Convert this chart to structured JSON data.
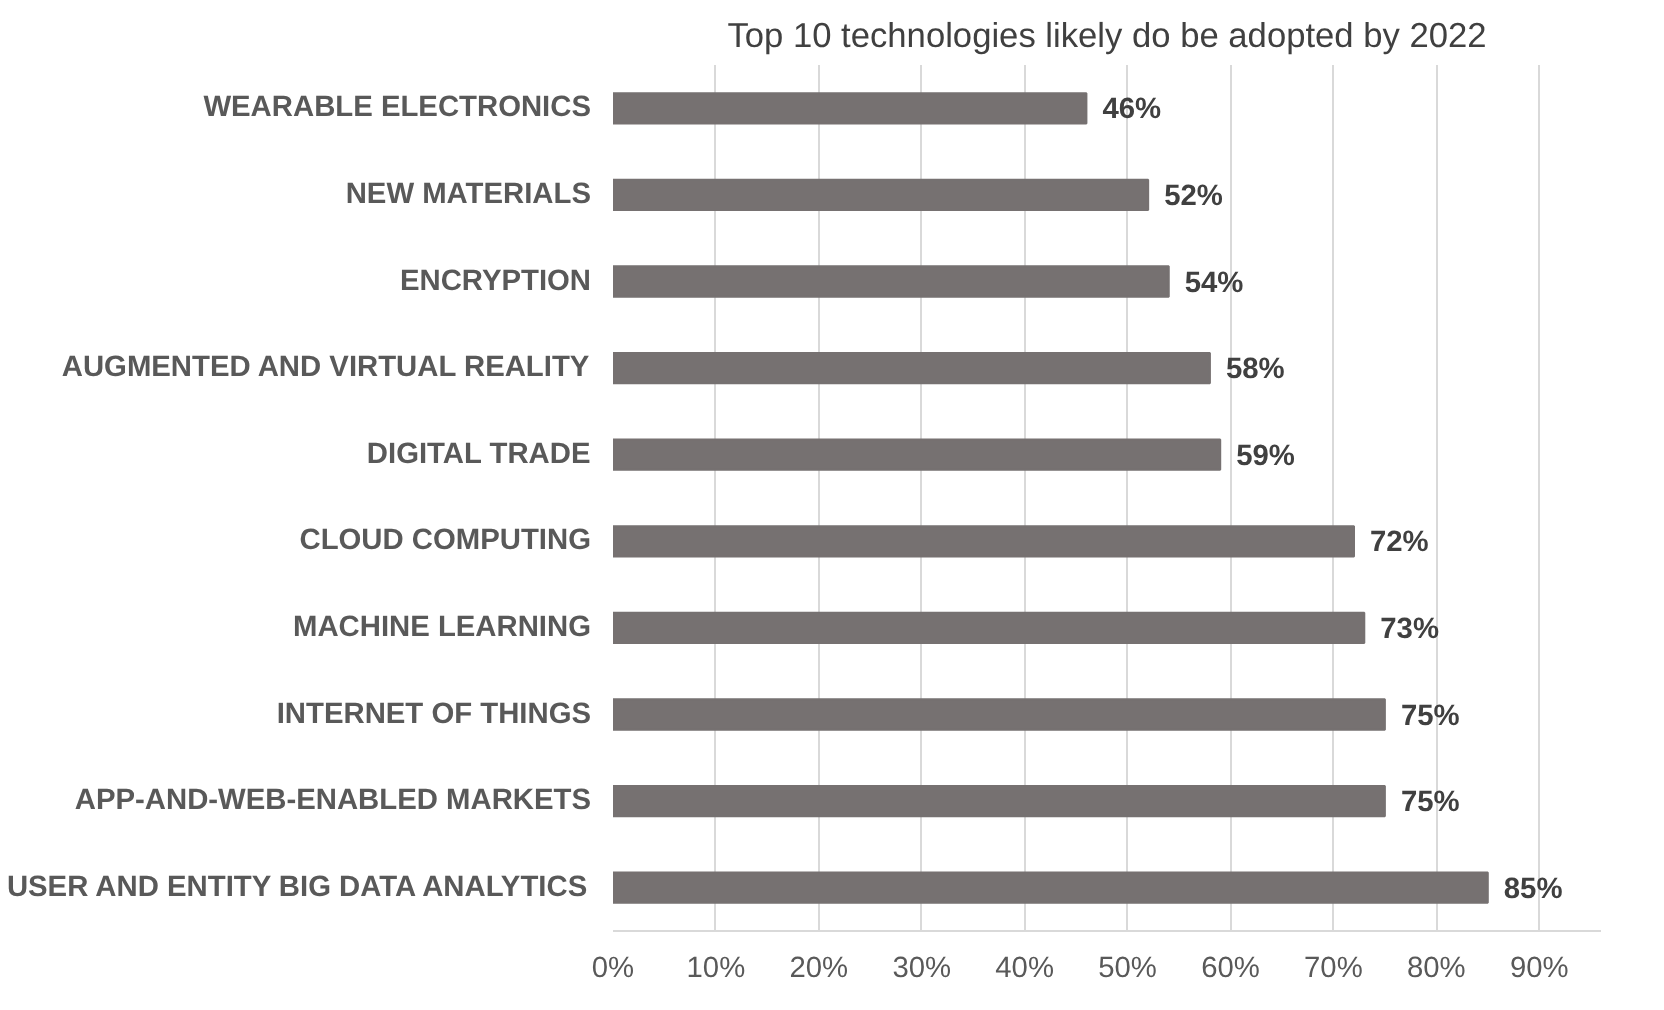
{
  "chart_data": {
    "type": "bar",
    "orientation": "horizontal",
    "title": "Top 10 technologies likely do be adopted by 2022",
    "categories": [
      "WEARABLE ELECTRONICS",
      "NEW MATERIALS",
      "ENCRYPTION",
      "AUGMENTED AND VIRTUAL REALITY",
      "DIGITAL TRADE",
      "CLOUD COMPUTING",
      "MACHINE LEARNING",
      "INTERNET OF THINGS",
      "APP-AND-WEB-ENABLED MARKETS",
      "USER AND ENTITY BIG DATA ANALYTICS"
    ],
    "values": [
      46,
      52,
      54,
      58,
      59,
      72,
      73,
      75,
      75,
      85
    ],
    "value_labels": [
      "46%",
      "52%",
      "54%",
      "58%",
      "59%",
      "72%",
      "73%",
      "75%",
      "75%",
      "85%"
    ],
    "color": "#767171",
    "xlim": [
      0,
      96
    ],
    "xticks": [
      {
        "value": 0,
        "label": "0%"
      },
      {
        "value": 10,
        "label": "10%"
      },
      {
        "value": 20,
        "label": "20%"
      },
      {
        "value": 30,
        "label": "30%"
      },
      {
        "value": 40,
        "label": "40%"
      },
      {
        "value": 50,
        "label": "50%"
      },
      {
        "value": 60,
        "label": "60%"
      },
      {
        "value": 70,
        "label": "70%"
      },
      {
        "value": 80,
        "label": "80%"
      },
      {
        "value": 90,
        "label": "90%"
      }
    ],
    "grid": "x",
    "legend": false
  }
}
